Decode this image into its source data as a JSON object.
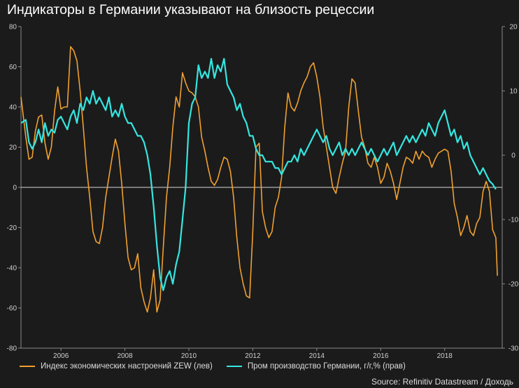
{
  "chart_data": {
    "type": "line",
    "title": "Индикаторы в Германии указывают на близость рецессии",
    "source": "Source: Refinitiv Datastream / Доходь",
    "grid": false,
    "legend_placement": "bottom-left",
    "x_axis": {
      "range": [
        2004.75,
        2019.8
      ],
      "ticks": [
        "2006",
        "2008",
        "2010",
        "2012",
        "2014",
        "2016",
        "2018"
      ]
    },
    "y_left": {
      "range": [
        -80,
        80
      ],
      "ticks": [
        "80",
        "60",
        "40",
        "20",
        "0",
        "-20",
        "-40",
        "-60",
        "-80"
      ]
    },
    "y_right": {
      "range": [
        -30,
        20
      ],
      "ticks": [
        "20",
        "10",
        "0",
        "-10",
        "-20",
        "-30"
      ]
    },
    "series": [
      {
        "name": "Индекс экономических настроений ZEW (лев)",
        "axis": "left",
        "color": "#f0a030",
        "points": [
          [
            2004.75,
            45
          ],
          [
            2004.9,
            25
          ],
          [
            2005.0,
            14
          ],
          [
            2005.1,
            15
          ],
          [
            2005.2,
            28
          ],
          [
            2005.3,
            35
          ],
          [
            2005.4,
            36
          ],
          [
            2005.5,
            22
          ],
          [
            2005.6,
            14
          ],
          [
            2005.7,
            20
          ],
          [
            2005.8,
            38
          ],
          [
            2005.9,
            50
          ],
          [
            2006.0,
            39
          ],
          [
            2006.1,
            40
          ],
          [
            2006.2,
            40
          ],
          [
            2006.3,
            70
          ],
          [
            2006.4,
            68
          ],
          [
            2006.5,
            63
          ],
          [
            2006.6,
            48
          ],
          [
            2006.7,
            30
          ],
          [
            2006.8,
            10
          ],
          [
            2006.9,
            -5
          ],
          [
            2007.0,
            -22
          ],
          [
            2007.1,
            -27
          ],
          [
            2007.2,
            -28
          ],
          [
            2007.3,
            -20
          ],
          [
            2007.4,
            -5
          ],
          [
            2007.5,
            5
          ],
          [
            2007.6,
            15
          ],
          [
            2007.7,
            24
          ],
          [
            2007.8,
            18
          ],
          [
            2007.9,
            2
          ],
          [
            2008.0,
            -18
          ],
          [
            2008.1,
            -35
          ],
          [
            2008.2,
            -41
          ],
          [
            2008.3,
            -40
          ],
          [
            2008.4,
            -33
          ],
          [
            2008.5,
            -50
          ],
          [
            2008.6,
            -57
          ],
          [
            2008.7,
            -62
          ],
          [
            2008.8,
            -55
          ],
          [
            2008.9,
            -41
          ],
          [
            2009.0,
            -62
          ],
          [
            2009.1,
            -56
          ],
          [
            2009.2,
            -30
          ],
          [
            2009.3,
            -5
          ],
          [
            2009.4,
            10
          ],
          [
            2009.5,
            30
          ],
          [
            2009.6,
            45
          ],
          [
            2009.7,
            40
          ],
          [
            2009.8,
            57
          ],
          [
            2009.9,
            52
          ],
          [
            2010.0,
            48
          ],
          [
            2010.1,
            47
          ],
          [
            2010.2,
            45
          ],
          [
            2010.3,
            40
          ],
          [
            2010.4,
            25
          ],
          [
            2010.5,
            18
          ],
          [
            2010.6,
            10
          ],
          [
            2010.7,
            3
          ],
          [
            2010.8,
            1
          ],
          [
            2010.9,
            4
          ],
          [
            2011.0,
            10
          ],
          [
            2011.1,
            15
          ],
          [
            2011.2,
            14
          ],
          [
            2011.3,
            8
          ],
          [
            2011.4,
            -5
          ],
          [
            2011.5,
            -25
          ],
          [
            2011.6,
            -40
          ],
          [
            2011.7,
            -48
          ],
          [
            2011.8,
            -54
          ],
          [
            2011.9,
            -55
          ],
          [
            2012.0,
            -22
          ],
          [
            2012.1,
            20
          ],
          [
            2012.2,
            22
          ],
          [
            2012.3,
            -12
          ],
          [
            2012.4,
            -20
          ],
          [
            2012.5,
            -25
          ],
          [
            2012.6,
            -22
          ],
          [
            2012.7,
            -10
          ],
          [
            2012.8,
            -5
          ],
          [
            2012.9,
            5
          ],
          [
            2013.0,
            30
          ],
          [
            2013.1,
            47
          ],
          [
            2013.2,
            40
          ],
          [
            2013.3,
            38
          ],
          [
            2013.4,
            42
          ],
          [
            2013.5,
            48
          ],
          [
            2013.6,
            52
          ],
          [
            2013.7,
            55
          ],
          [
            2013.8,
            60
          ],
          [
            2013.9,
            62
          ],
          [
            2014.0,
            55
          ],
          [
            2014.1,
            45
          ],
          [
            2014.2,
            30
          ],
          [
            2014.3,
            20
          ],
          [
            2014.4,
            10
          ],
          [
            2014.5,
            0
          ],
          [
            2014.6,
            -3
          ],
          [
            2014.7,
            5
          ],
          [
            2014.8,
            12
          ],
          [
            2014.9,
            18
          ],
          [
            2015.0,
            40
          ],
          [
            2015.1,
            54
          ],
          [
            2015.2,
            52
          ],
          [
            2015.3,
            38
          ],
          [
            2015.4,
            25
          ],
          [
            2015.5,
            20
          ],
          [
            2015.6,
            12
          ],
          [
            2015.7,
            10
          ],
          [
            2015.8,
            15
          ],
          [
            2015.9,
            10
          ],
          [
            2016.0,
            2
          ],
          [
            2016.1,
            5
          ],
          [
            2016.2,
            12
          ],
          [
            2016.3,
            8
          ],
          [
            2016.4,
            2
          ],
          [
            2016.5,
            -6
          ],
          [
            2016.6,
            2
          ],
          [
            2016.7,
            10
          ],
          [
            2016.8,
            15
          ],
          [
            2016.9,
            14
          ],
          [
            2017.0,
            12
          ],
          [
            2017.1,
            18
          ],
          [
            2017.2,
            14
          ],
          [
            2017.3,
            18
          ],
          [
            2017.4,
            16
          ],
          [
            2017.5,
            15
          ],
          [
            2017.6,
            10
          ],
          [
            2017.7,
            14
          ],
          [
            2017.8,
            17
          ],
          [
            2017.9,
            18
          ],
          [
            2018.0,
            19
          ],
          [
            2018.1,
            18
          ],
          [
            2018.2,
            8
          ],
          [
            2018.3,
            -8
          ],
          [
            2018.4,
            -15
          ],
          [
            2018.5,
            -24
          ],
          [
            2018.6,
            -20
          ],
          [
            2018.7,
            -14
          ],
          [
            2018.8,
            -22
          ],
          [
            2018.9,
            -24
          ],
          [
            2019.0,
            -18
          ],
          [
            2019.1,
            -15
          ],
          [
            2019.2,
            -2
          ],
          [
            2019.3,
            3
          ],
          [
            2019.4,
            -2
          ],
          [
            2019.5,
            -21
          ],
          [
            2019.6,
            -25
          ],
          [
            2019.65,
            -44
          ]
        ]
      },
      {
        "name": "Пром производство Германии, г/г,% (прав)",
        "axis": "right",
        "color": "#35e6e0",
        "points": [
          [
            2004.75,
            5
          ],
          [
            2004.9,
            5.5
          ],
          [
            2005.0,
            2
          ],
          [
            2005.1,
            1
          ],
          [
            2005.2,
            2
          ],
          [
            2005.3,
            4
          ],
          [
            2005.4,
            2
          ],
          [
            2005.5,
            5
          ],
          [
            2005.6,
            3
          ],
          [
            2005.7,
            4
          ],
          [
            2005.8,
            3.5
          ],
          [
            2005.9,
            5.5
          ],
          [
            2006.0,
            6
          ],
          [
            2006.1,
            5
          ],
          [
            2006.2,
            4
          ],
          [
            2006.3,
            6
          ],
          [
            2006.4,
            7
          ],
          [
            2006.5,
            5
          ],
          [
            2006.6,
            8
          ],
          [
            2006.7,
            7
          ],
          [
            2006.8,
            9
          ],
          [
            2006.9,
            8
          ],
          [
            2007.0,
            10
          ],
          [
            2007.1,
            8
          ],
          [
            2007.2,
            9
          ],
          [
            2007.3,
            8
          ],
          [
            2007.4,
            7
          ],
          [
            2007.5,
            9
          ],
          [
            2007.6,
            6
          ],
          [
            2007.7,
            7
          ],
          [
            2007.8,
            6
          ],
          [
            2007.9,
            8
          ],
          [
            2008.0,
            6
          ],
          [
            2008.1,
            5
          ],
          [
            2008.2,
            5
          ],
          [
            2008.3,
            4
          ],
          [
            2008.4,
            3
          ],
          [
            2008.5,
            3
          ],
          [
            2008.6,
            2
          ],
          [
            2008.7,
            0
          ],
          [
            2008.8,
            -3
          ],
          [
            2008.9,
            -8
          ],
          [
            2009.0,
            -14
          ],
          [
            2009.1,
            -19
          ],
          [
            2009.2,
            -21
          ],
          [
            2009.3,
            -19
          ],
          [
            2009.4,
            -18
          ],
          [
            2009.5,
            -20
          ],
          [
            2009.6,
            -17
          ],
          [
            2009.7,
            -15
          ],
          [
            2009.8,
            -10
          ],
          [
            2009.9,
            -5
          ],
          [
            2010.0,
            5
          ],
          [
            2010.1,
            8
          ],
          [
            2010.2,
            9
          ],
          [
            2010.3,
            14
          ],
          [
            2010.4,
            12
          ],
          [
            2010.5,
            13
          ],
          [
            2010.6,
            12
          ],
          [
            2010.7,
            15
          ],
          [
            2010.8,
            12
          ],
          [
            2010.9,
            14
          ],
          [
            2011.0,
            13
          ],
          [
            2011.1,
            15
          ],
          [
            2011.2,
            11
          ],
          [
            2011.3,
            10
          ],
          [
            2011.4,
            9
          ],
          [
            2011.5,
            7
          ],
          [
            2011.6,
            8
          ],
          [
            2011.7,
            6
          ],
          [
            2011.8,
            5
          ],
          [
            2011.9,
            3
          ],
          [
            2012.0,
            3
          ],
          [
            2012.1,
            1
          ],
          [
            2012.2,
            0
          ],
          [
            2012.3,
            0
          ],
          [
            2012.4,
            -1
          ],
          [
            2012.5,
            -1
          ],
          [
            2012.6,
            -1
          ],
          [
            2012.7,
            -2
          ],
          [
            2012.8,
            -2
          ],
          [
            2012.9,
            -3
          ],
          [
            2013.0,
            -2
          ],
          [
            2013.1,
            -1
          ],
          [
            2013.2,
            -1
          ],
          [
            2013.3,
            0
          ],
          [
            2013.4,
            -1
          ],
          [
            2013.5,
            1
          ],
          [
            2013.6,
            0
          ],
          [
            2013.7,
            1
          ],
          [
            2013.8,
            2
          ],
          [
            2013.9,
            3
          ],
          [
            2014.0,
            4
          ],
          [
            2014.1,
            3
          ],
          [
            2014.2,
            2
          ],
          [
            2014.3,
            3
          ],
          [
            2014.4,
            1
          ],
          [
            2014.5,
            0
          ],
          [
            2014.6,
            1
          ],
          [
            2014.7,
            2
          ],
          [
            2014.8,
            0
          ],
          [
            2014.9,
            1
          ],
          [
            2015.0,
            0
          ],
          [
            2015.1,
            1
          ],
          [
            2015.2,
            0
          ],
          [
            2015.3,
            1
          ],
          [
            2015.4,
            2
          ],
          [
            2015.5,
            1
          ],
          [
            2015.6,
            0
          ],
          [
            2015.7,
            1
          ],
          [
            2015.8,
            0
          ],
          [
            2015.9,
            -1
          ],
          [
            2016.0,
            0
          ],
          [
            2016.1,
            1
          ],
          [
            2016.2,
            0
          ],
          [
            2016.3,
            1
          ],
          [
            2016.4,
            2
          ],
          [
            2016.5,
            0
          ],
          [
            2016.6,
            1
          ],
          [
            2016.7,
            2
          ],
          [
            2016.8,
            3
          ],
          [
            2016.9,
            2
          ],
          [
            2017.0,
            3
          ],
          [
            2017.1,
            2
          ],
          [
            2017.2,
            3
          ],
          [
            2017.3,
            4
          ],
          [
            2017.4,
            3
          ],
          [
            2017.5,
            5
          ],
          [
            2017.6,
            4
          ],
          [
            2017.7,
            3
          ],
          [
            2017.8,
            5
          ],
          [
            2017.9,
            6
          ],
          [
            2018.0,
            7
          ],
          [
            2018.1,
            5
          ],
          [
            2018.2,
            3
          ],
          [
            2018.3,
            4
          ],
          [
            2018.4,
            2
          ],
          [
            2018.5,
            3
          ],
          [
            2018.6,
            1
          ],
          [
            2018.7,
            2
          ],
          [
            2018.8,
            0
          ],
          [
            2018.9,
            -1
          ],
          [
            2019.0,
            -2
          ],
          [
            2019.1,
            -3
          ],
          [
            2019.2,
            -2
          ],
          [
            2019.3,
            -3
          ],
          [
            2019.4,
            -4
          ],
          [
            2019.5,
            -4.5
          ],
          [
            2019.6,
            -5.3
          ]
        ]
      }
    ]
  }
}
